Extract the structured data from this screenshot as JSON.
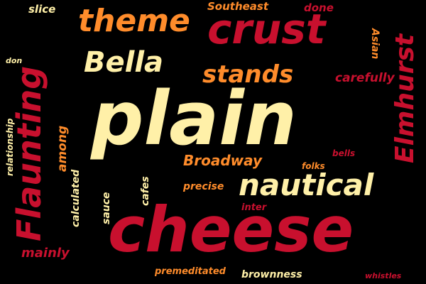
{
  "colors": {
    "background": "#000000",
    "cream": "#FFF0A8",
    "crimson": "#C8102E",
    "orange": "#FF8C2B"
  },
  "words": [
    {
      "text": "plain",
      "color": "cream"
    },
    {
      "text": "cheese",
      "color": "crimson"
    },
    {
      "text": "crust",
      "color": "crimson"
    },
    {
      "text": "nautical",
      "color": "cream"
    },
    {
      "text": "Flaunting",
      "color": "crimson"
    },
    {
      "text": "theme",
      "color": "orange"
    },
    {
      "text": "Bella",
      "color": "cream"
    },
    {
      "text": "Elmhurst",
      "color": "crimson"
    },
    {
      "text": "stands",
      "color": "orange"
    },
    {
      "text": "Broadway",
      "color": "orange"
    },
    {
      "text": "carefully",
      "color": "crimson"
    },
    {
      "text": "Southeast",
      "color": "orange"
    },
    {
      "text": "done",
      "color": "crimson"
    },
    {
      "text": "slice",
      "color": "cream"
    },
    {
      "text": "don",
      "color": "cream"
    },
    {
      "text": "Asian",
      "color": "orange"
    },
    {
      "text": "relationship",
      "color": "cream"
    },
    {
      "text": "among",
      "color": "orange"
    },
    {
      "text": "calculated",
      "color": "cream"
    },
    {
      "text": "sauce",
      "color": "cream"
    },
    {
      "text": "cafes",
      "color": "cream"
    },
    {
      "text": "precise",
      "color": "orange"
    },
    {
      "text": "folks",
      "color": "orange"
    },
    {
      "text": "bells",
      "color": "crimson"
    },
    {
      "text": "inter",
      "color": "crimson"
    },
    {
      "text": "mainly",
      "color": "crimson"
    },
    {
      "text": "premeditated",
      "color": "orange"
    },
    {
      "text": "brownness",
      "color": "cream"
    },
    {
      "text": "whistles",
      "color": "crimson"
    }
  ]
}
